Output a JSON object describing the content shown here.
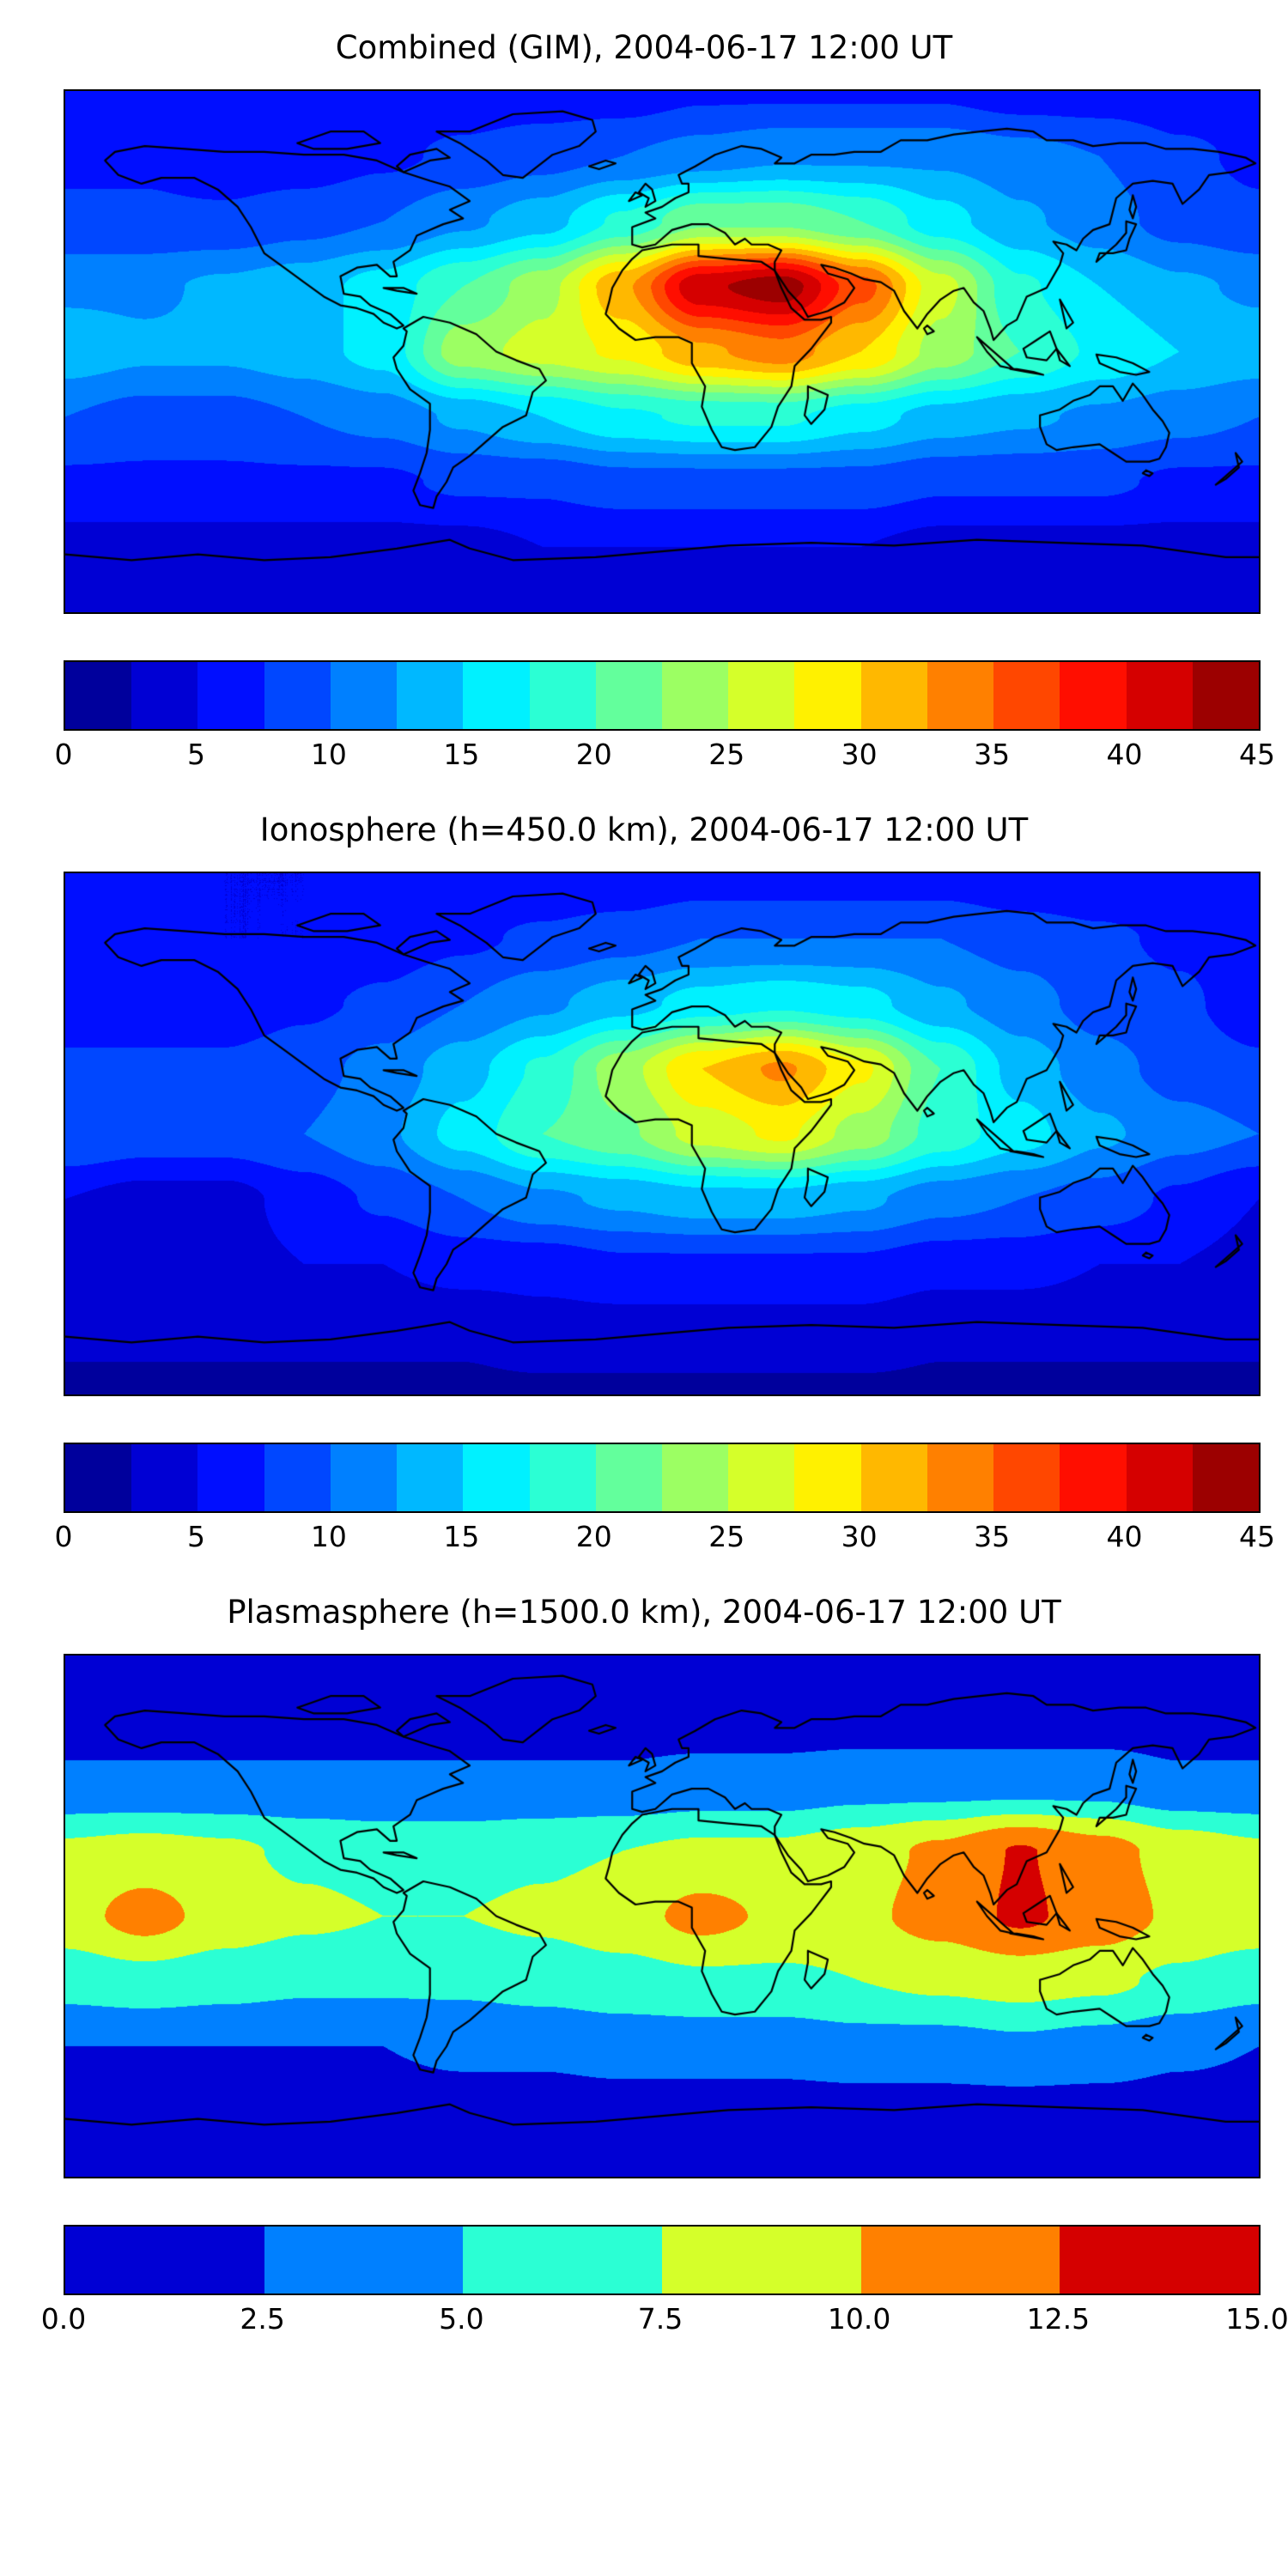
{
  "figure": {
    "type": "three-panel global TEC contour maps",
    "colors": {
      "background": "#ffffff",
      "text": "#000000",
      "coastline": "#000000",
      "map_border": "#000000"
    }
  },
  "chart_data": [
    {
      "type": "heatmap",
      "title": "Combined (GIM), 2004-06-17 12:00 UT",
      "colormap": "jet",
      "projection": "equirectangular",
      "legend_position": "bottom-colorbar",
      "grid": false,
      "vmin": 0,
      "vmax": 45,
      "n_levels": 18,
      "level_step": 2.5,
      "colorbar_ticks": [
        "0",
        "5",
        "10",
        "15",
        "20",
        "25",
        "30",
        "35",
        "40",
        "45"
      ],
      "lon_range": [
        -180,
        180
      ],
      "lat_range": [
        -90,
        90
      ],
      "grid_lons": [
        -180,
        -156,
        -132,
        -108,
        -84,
        -60,
        -36,
        -12,
        12,
        36,
        60,
        84,
        108,
        132,
        156,
        180
      ],
      "grid_lats": [
        90,
        67.5,
        45,
        22.5,
        0,
        -22.5,
        -45,
        -67.5,
        -90
      ],
      "values": [
        [
          6,
          6,
          6,
          6,
          6,
          6,
          6,
          6,
          7,
          7,
          7,
          7,
          6,
          6,
          6,
          6
        ],
        [
          7,
          7,
          6,
          6,
          7,
          8,
          9,
          10,
          11,
          12,
          12,
          12,
          11,
          10,
          8,
          7
        ],
        [
          8,
          8,
          8,
          9,
          10,
          12,
          14,
          18,
          22,
          22,
          20,
          16,
          13,
          11,
          9,
          8
        ],
        [
          12,
          12,
          13,
          14,
          16,
          20,
          24,
          32,
          42,
          44,
          36,
          26,
          18,
          15,
          13,
          12
        ],
        [
          14,
          13,
          13,
          14,
          16,
          24,
          26,
          28,
          32,
          34,
          30,
          24,
          20,
          17,
          15,
          14
        ],
        [
          10,
          9,
          9,
          10,
          11,
          13,
          15,
          17,
          18,
          18,
          16,
          14,
          13,
          12,
          11,
          10
        ],
        [
          7,
          7,
          7,
          7,
          7,
          8,
          8,
          9,
          9,
          9,
          9,
          8,
          8,
          8,
          7,
          7
        ],
        [
          4,
          4,
          4,
          4,
          4,
          4,
          5,
          5,
          5,
          5,
          5,
          4,
          4,
          4,
          4,
          4
        ],
        [
          3,
          3,
          3,
          3,
          3,
          3,
          3,
          3,
          3,
          3,
          3,
          3,
          3,
          3,
          3,
          3
        ]
      ]
    },
    {
      "type": "heatmap",
      "title": "Ionosphere (h=450.0 km), 2004-06-17 12:00 UT",
      "colormap": "jet",
      "projection": "equirectangular",
      "legend_position": "bottom-colorbar",
      "grid": false,
      "vmin": 0,
      "vmax": 45,
      "n_levels": 18,
      "level_step": 2.5,
      "colorbar_ticks": [
        "0",
        "5",
        "10",
        "15",
        "20",
        "25",
        "30",
        "35",
        "40",
        "45"
      ],
      "lon_range": [
        -180,
        180
      ],
      "lat_range": [
        -90,
        90
      ],
      "grid_lons": [
        -180,
        -156,
        -132,
        -108,
        -84,
        -60,
        -36,
        -12,
        12,
        36,
        60,
        84,
        108,
        132,
        156,
        180
      ],
      "grid_lats": [
        90,
        67.5,
        45,
        22.5,
        0,
        -22.5,
        -45,
        -67.5,
        -90
      ],
      "values": [
        [
          5,
          5,
          5,
          5,
          5,
          5,
          5,
          5,
          6,
          6,
          6,
          6,
          5,
          5,
          5,
          5
        ],
        [
          6,
          6,
          5,
          5,
          6,
          7,
          8,
          9,
          10,
          10,
          10,
          10,
          9,
          8,
          7,
          6
        ],
        [
          6,
          6,
          6,
          7,
          8,
          10,
          12,
          14,
          16,
          17,
          16,
          13,
          11,
          9,
          8,
          6
        ],
        [
          8,
          8,
          8,
          9,
          11,
          14,
          18,
          24,
          30,
          33,
          28,
          20,
          14,
          11,
          9,
          8
        ],
        [
          10,
          9,
          9,
          10,
          12,
          16,
          20,
          22,
          26,
          28,
          24,
          19,
          16,
          13,
          11,
          10
        ],
        [
          5,
          4,
          4,
          6,
          8,
          10,
          12,
          13,
          14,
          14,
          13,
          11,
          10,
          9,
          7,
          5
        ],
        [
          4,
          4,
          4,
          5,
          5,
          6,
          6,
          7,
          7,
          7,
          7,
          6,
          6,
          5,
          5,
          4
        ],
        [
          3,
          3,
          3,
          3,
          3,
          3,
          4,
          4,
          4,
          4,
          4,
          3,
          3,
          3,
          3,
          3
        ],
        [
          2,
          2,
          2,
          2,
          2,
          2,
          2,
          2,
          2,
          2,
          2,
          2,
          2,
          2,
          2,
          2
        ]
      ]
    },
    {
      "type": "heatmap",
      "title": "Plasmasphere (h=1500.0 km), 2004-06-17 12:00 UT",
      "colormap": "jet",
      "projection": "equirectangular",
      "legend_position": "bottom-colorbar",
      "grid": false,
      "vmin": 0,
      "vmax": 15,
      "n_levels": 6,
      "level_step": 2.5,
      "colorbar_ticks": [
        "0.0",
        "2.5",
        "5.0",
        "7.5",
        "10.0",
        "12.5",
        "15.0"
      ],
      "lon_range": [
        -180,
        180
      ],
      "lat_range": [
        -90,
        90
      ],
      "grid_lons": [
        -180,
        -156,
        -132,
        -108,
        -84,
        -60,
        -36,
        -12,
        12,
        36,
        60,
        84,
        108,
        132,
        156,
        180
      ],
      "grid_lats": [
        90,
        67.5,
        45,
        22.5,
        0,
        -22.5,
        -45,
        -67.5,
        -90
      ],
      "values": [
        [
          1,
          1,
          1,
          1,
          1,
          1,
          1,
          1,
          1,
          1,
          1,
          1,
          1,
          1,
          1,
          1
        ],
        [
          1.5,
          1.5,
          1.5,
          1.5,
          1.5,
          1.5,
          1.5,
          1.5,
          1.5,
          1.5,
          1.5,
          1.5,
          1.5,
          1.5,
          1.5,
          1.5
        ],
        [
          3,
          3,
          3,
          3,
          3,
          3,
          3,
          3,
          3.5,
          3.5,
          4,
          4,
          4,
          4,
          3,
          3
        ],
        [
          8,
          8.5,
          8,
          7,
          6.5,
          6.5,
          7,
          7.5,
          8,
          8,
          9,
          10.5,
          12.7,
          11,
          9,
          8
        ],
        [
          9,
          11,
          9,
          8,
          7.5,
          7.5,
          8,
          9,
          10.8,
          9.5,
          9.5,
          11,
          12.9,
          11.5,
          9.5,
          9
        ],
        [
          6,
          6.5,
          6,
          5.5,
          5.5,
          5.5,
          6,
          6.5,
          7,
          7,
          7.5,
          8,
          8.5,
          8,
          7,
          6
        ],
        [
          2.5,
          2.5,
          2.5,
          2.5,
          2.5,
          3,
          3,
          3.5,
          3.5,
          3.5,
          4,
          4,
          4.5,
          4,
          3,
          2.5
        ],
        [
          1.5,
          1.5,
          1.5,
          1.5,
          1.5,
          1.5,
          1.5,
          1.5,
          1.5,
          1.5,
          1.5,
          1.5,
          1.5,
          1.5,
          1.5,
          1.5
        ],
        [
          1,
          1,
          1,
          1,
          1,
          1,
          1,
          1,
          1,
          1,
          1,
          1,
          1,
          1,
          1,
          1
        ]
      ]
    }
  ]
}
